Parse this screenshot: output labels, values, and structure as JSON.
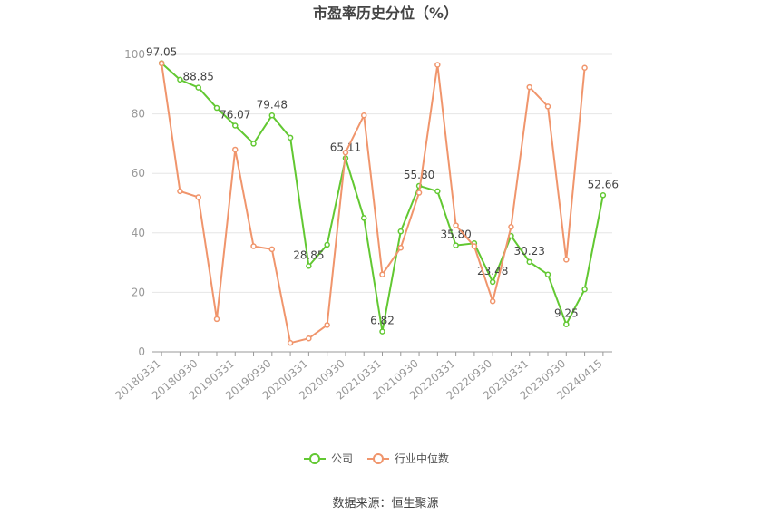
{
  "chart_data": {
    "type": "line",
    "title": "市盈率历史分位（%）",
    "categories": [
      "20180331",
      null,
      "20180930",
      null,
      "20190331",
      null,
      "20190930",
      null,
      "20200331",
      null,
      "20200930",
      null,
      "20210331",
      null,
      "20210930",
      null,
      "20220331",
      null,
      "20220930",
      null,
      "20230331",
      null,
      "20230930",
      null,
      "20240415"
    ],
    "series": [
      {
        "name": "公司",
        "color": "#62c832",
        "values": [
          97.05,
          91.5,
          88.85,
          82,
          76.07,
          70,
          79.48,
          72,
          28.85,
          36,
          65.11,
          45,
          6.82,
          40.5,
          55.8,
          54,
          35.8,
          36.5,
          23.48,
          39,
          30.23,
          26,
          9.25,
          21,
          52.66
        ],
        "value_labels": [
          "97.05",
          null,
          "88.85",
          null,
          "76.07",
          null,
          "79.48",
          null,
          "28.85",
          null,
          "65.11",
          null,
          "6.82",
          null,
          "55.80",
          null,
          "35.80",
          null,
          "23.48",
          null,
          "30.23",
          null,
          "9.25",
          null,
          "52.66"
        ]
      },
      {
        "name": "行业中位数",
        "color": "#f0956c",
        "values": [
          97,
          54,
          52,
          11,
          68,
          35.5,
          34.5,
          3,
          4.5,
          9,
          67,
          79.5,
          26,
          35,
          53.5,
          96.5,
          42.5,
          35.5,
          17,
          42,
          89,
          82.5,
          31,
          95.5,
          null
        ]
      }
    ],
    "ylim": [
      0,
      100
    ],
    "yticks": [
      0,
      20,
      40,
      60,
      80,
      100
    ],
    "grid": true,
    "source": "数据来源：恒生聚源"
  }
}
